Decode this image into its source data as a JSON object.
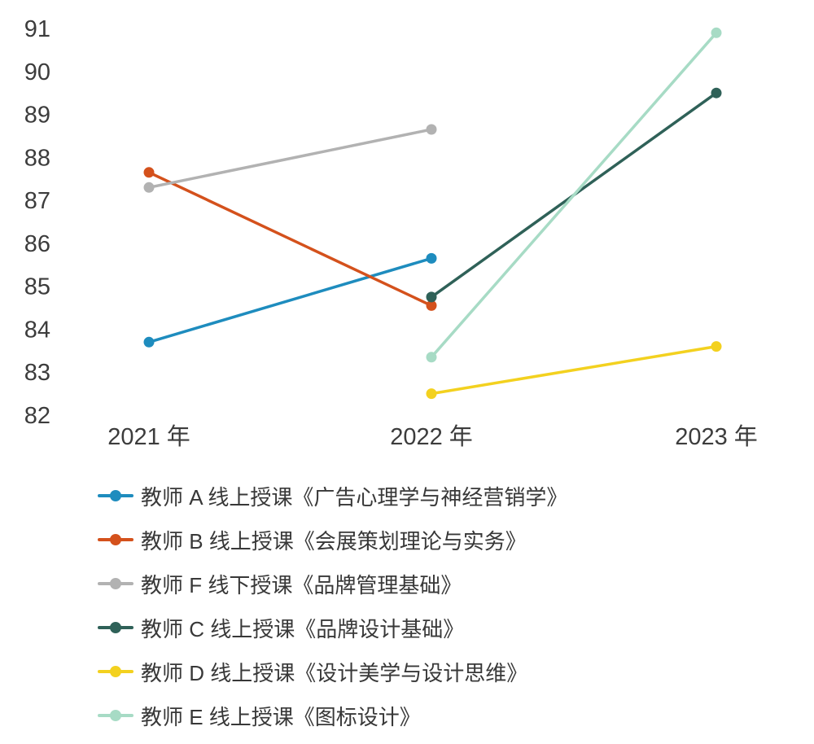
{
  "chart_data": {
    "type": "line",
    "title": "",
    "xlabel": "",
    "ylabel": "",
    "categories": [
      "2021 年",
      "2022 年",
      "2023 年"
    ],
    "ylim": [
      82,
      91
    ],
    "ytick_step": 1,
    "grid": false,
    "legend_position": "bottom-left",
    "series": [
      {
        "name": "教师 A 线上授课《广告心理学与神经营销学》",
        "color": "#1e8cbe",
        "values": [
          83.7,
          85.65,
          null
        ]
      },
      {
        "name": "教师 B 线上授课《会展策划理论与实务》",
        "color": "#d4511c",
        "values": [
          87.65,
          84.55,
          null
        ]
      },
      {
        "name": "教师 F 线下授课《品牌管理基础》",
        "color": "#b2b2b2",
        "values": [
          87.3,
          88.65,
          null
        ]
      },
      {
        "name": "教师 C 线上授课《品牌设计基础》",
        "color": "#2f6158",
        "values": [
          null,
          84.75,
          89.5
        ]
      },
      {
        "name": "教师 D 线上授课《设计美学与设计思维》",
        "color": "#f3d11f",
        "values": [
          null,
          82.5,
          83.6
        ]
      },
      {
        "name": "教师 E 线上授课《图标设计》",
        "color": "#a7dbc5",
        "values": [
          null,
          83.35,
          90.9
        ]
      }
    ],
    "style": {
      "line_width": 3.5,
      "marker_radius": 6.5,
      "tick_color": "#3c3c3c"
    }
  }
}
